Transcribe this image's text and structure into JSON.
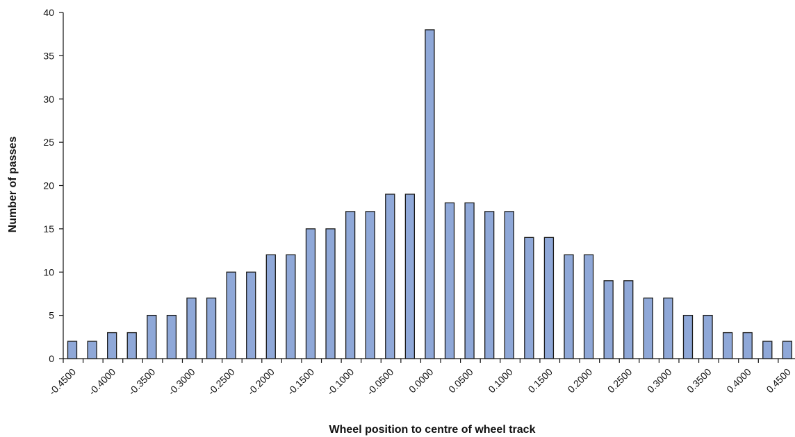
{
  "chart_data": {
    "type": "bar",
    "title": "",
    "xlabel": "Wheel position to centre of wheel track",
    "ylabel": "Number of passes",
    "ylim": [
      0,
      40
    ],
    "yticks": [
      "0",
      "5",
      "10",
      "15",
      "20",
      "25",
      "30",
      "35",
      "40"
    ],
    "x_tick_labels": [
      "-0.4500",
      "-0.4000",
      "-0.3500",
      "-0.3000",
      "-0.2500",
      "-0.2000",
      "-0.1500",
      "-0.1000",
      "-0.0500",
      "0.0000",
      "0.0500",
      "0.1000",
      "0.1500",
      "0.2000",
      "0.2500",
      "0.3000",
      "0.3500",
      "0.4000",
      "0.4500"
    ],
    "x_tick_label_at_bar": [
      0,
      2,
      4,
      6,
      8,
      10,
      12,
      14,
      16,
      18,
      20,
      22,
      24,
      26,
      28,
      30,
      32,
      34,
      36
    ],
    "values": [
      2,
      2,
      3,
      3,
      5,
      5,
      7,
      7,
      10,
      10,
      12,
      12,
      15,
      15,
      17,
      17,
      19,
      19,
      38,
      18,
      18,
      17,
      17,
      14,
      14,
      12,
      12,
      9,
      9,
      7,
      7,
      5,
      5,
      3,
      3,
      2,
      2
    ],
    "grid": false,
    "legend": "none",
    "bar_color": "#8fa8d8",
    "bar_edge_color": "#1a1a1a"
  }
}
